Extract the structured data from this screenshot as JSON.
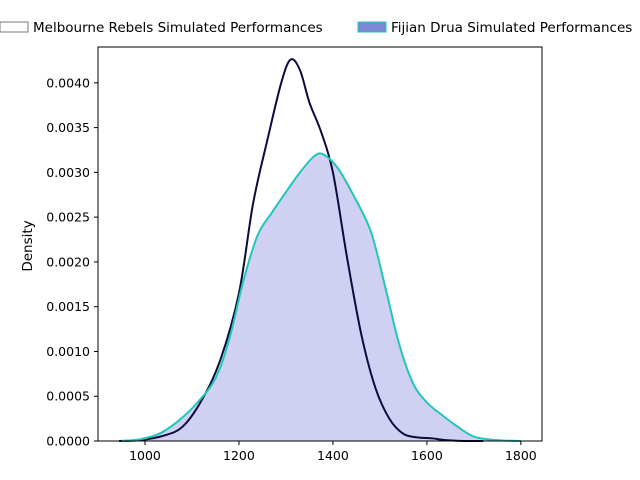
{
  "chart_data": {
    "type": "area",
    "title": "",
    "xlabel": "",
    "ylabel": "Density",
    "xlim": [
      900,
      1845
    ],
    "ylim": [
      0,
      0.0044
    ],
    "x_ticks": [
      1000,
      1200,
      1400,
      1600,
      1800
    ],
    "y_ticks": [
      0.0,
      0.0005,
      0.001,
      0.0015,
      0.002,
      0.0025,
      0.003,
      0.0035,
      0.004
    ],
    "x_tick_labels": [
      "1000",
      "1200",
      "1400",
      "1600",
      "1800"
    ],
    "y_tick_labels": [
      "0.0000",
      "0.0005",
      "0.0010",
      "0.0015",
      "0.0020",
      "0.0025",
      "0.0030",
      "0.0035",
      "0.0040"
    ],
    "grid": false,
    "legend_position": "top",
    "series": [
      {
        "name": "Melbourne Rebels Simulated Performances",
        "fill": false,
        "line_color": "#0d0a3d",
        "legend_face": "#ffffff",
        "legend_edge": "#7a7a7a",
        "x": [
          945,
          990,
          1040,
          1080,
          1120,
          1160,
          1200,
          1230,
          1260,
          1290,
          1310,
          1330,
          1350,
          1375,
          1400,
          1430,
          1460,
          1490,
          1520,
          1550,
          1580,
          1610,
          1640,
          1680,
          1720
        ],
        "y": [
          0.0,
          1e-05,
          6e-05,
          0.00016,
          0.00045,
          0.0009,
          0.00165,
          0.00265,
          0.00335,
          0.004,
          0.00426,
          0.00414,
          0.00378,
          0.00345,
          0.003,
          0.00205,
          0.0012,
          0.0006,
          0.00025,
          8e-05,
          4e-05,
          3e-05,
          1e-05,
          0.0,
          0.0
        ]
      },
      {
        "name": "Fijian Drua Simulated Performances",
        "fill": true,
        "fill_color": "#9c9ce6",
        "line_color": "#1fc7b7",
        "legend_face": "#7f86d4",
        "legend_edge": "#1fc7b7",
        "x": [
          950,
          990,
          1030,
          1070,
          1110,
          1150,
          1180,
          1210,
          1240,
          1270,
          1300,
          1330,
          1360,
          1380,
          1410,
          1440,
          1480,
          1510,
          1540,
          1570,
          1600,
          1630,
          1660,
          1700,
          1750,
          1800
        ],
        "y": [
          0.0,
          2e-05,
          8e-05,
          0.00022,
          0.00042,
          0.0007,
          0.00115,
          0.0018,
          0.0023,
          0.00255,
          0.00278,
          0.003,
          0.00318,
          0.0032,
          0.00305,
          0.00278,
          0.00235,
          0.00175,
          0.0011,
          0.00065,
          0.00043,
          0.0003,
          0.00018,
          5e-05,
          1e-05,
          0.0
        ]
      }
    ]
  }
}
